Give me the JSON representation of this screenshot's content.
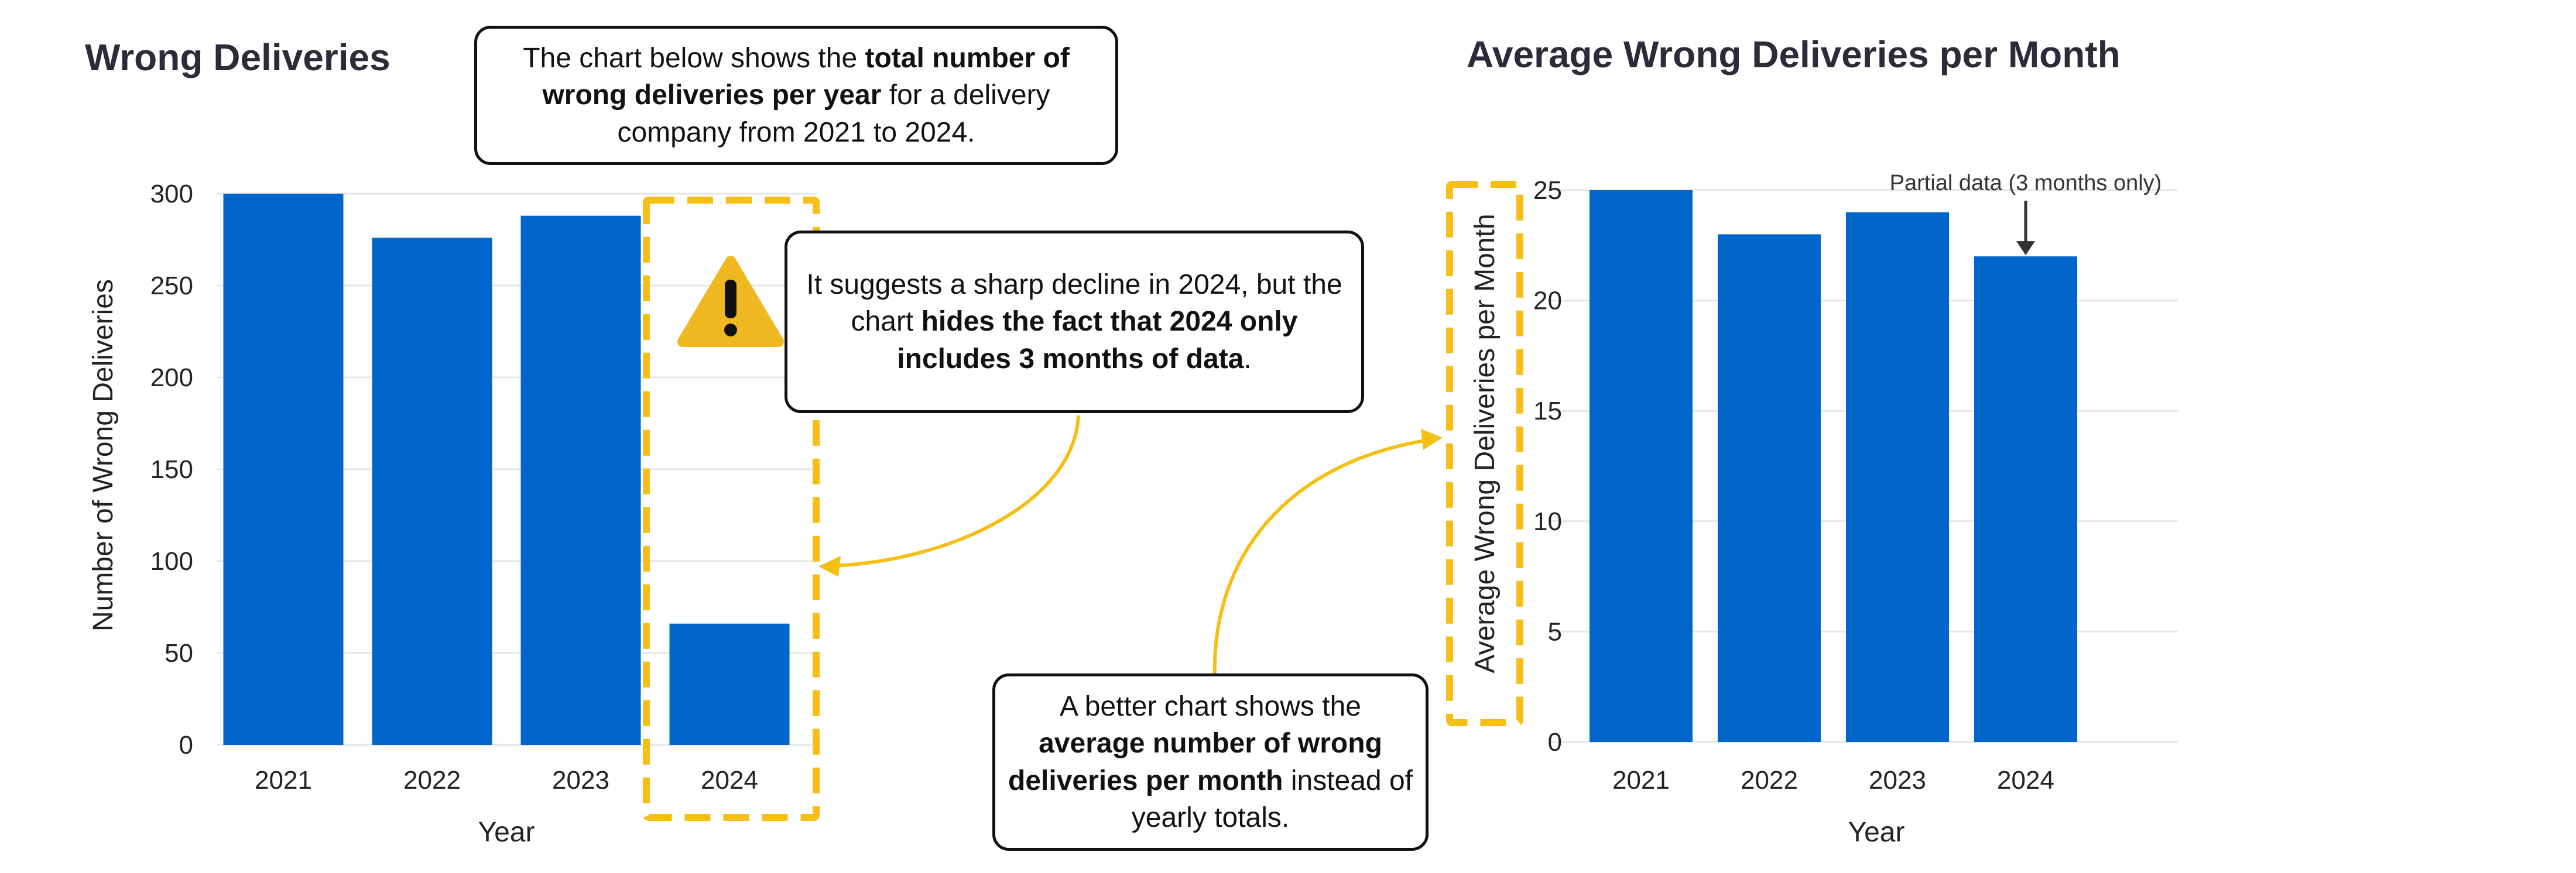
{
  "chart_data": [
    {
      "type": "bar",
      "title": "Wrong Deliveries",
      "categories": [
        "2021",
        "2022",
        "2023",
        "2024"
      ],
      "values": [
        300,
        276,
        288,
        66
      ],
      "xlabel": "Year",
      "ylabel": "Number of Wrong Deliveries",
      "ylim": [
        0,
        300
      ],
      "yticks": [
        "0",
        "50",
        "100",
        "150",
        "200",
        "250",
        "300"
      ],
      "grid": "horizontal",
      "bar_color": "#0066cc"
    },
    {
      "type": "bar",
      "title": "Average Wrong Deliveries per Month",
      "categories": [
        "2021",
        "2022",
        "2023",
        "2024"
      ],
      "values": [
        25,
        23,
        24,
        22
      ],
      "xlabel": "Year",
      "ylabel": "Average Wrong Deliveries per Month",
      "ylim": [
        0,
        25
      ],
      "yticks": [
        "0",
        "5",
        "10",
        "15",
        "20",
        "25"
      ],
      "grid": "horizontal",
      "bar_color": "#0066cc",
      "annotation": "Partial data (3 months only)"
    }
  ],
  "callouts": {
    "top": {
      "p1": "The chart below shows the ",
      "b1": "total number of wrong deliveries per year",
      "p2": " for a delivery company from 2021 to 2024."
    },
    "middle": {
      "p1": "It suggests a sharp decline in 2024, but the chart ",
      "b1": "hides the fact that 2024 only includes 3 months of data",
      "p2": "."
    },
    "bottom": {
      "p1": "A better chart shows the ",
      "b1": "average number of wrong deliveries per month",
      "p2": " instead of yearly totals."
    }
  },
  "colors": {
    "bar": "#0066cc",
    "highlight": "#f5bf16",
    "warning": "#f0b820",
    "grid": "#e6e6e6"
  },
  "icons": {
    "warning": "warning-triangle-icon"
  }
}
